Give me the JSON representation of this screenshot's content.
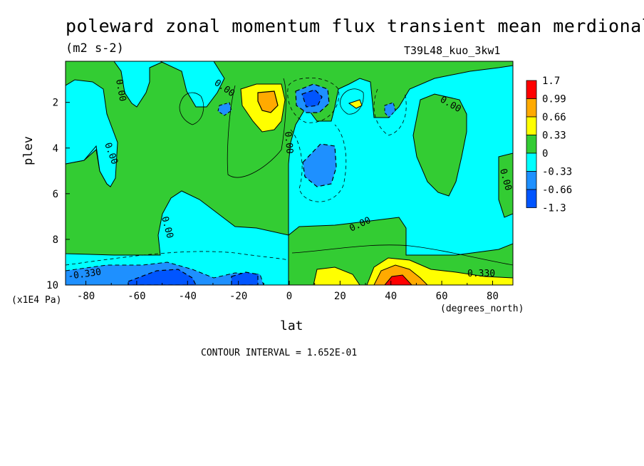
{
  "chart_data": {
    "type": "heatmap",
    "title": "poleward zonal momentum flux transient mean merdional",
    "units": "(m2 s-2)",
    "run_label": "T39L48_kuo_3kw1",
    "xlabel": "lat",
    "ylabel": "plev",
    "x_coord_label": "(degrees_north)",
    "y_coord_label": "(x1E4 Pa)",
    "xlim": [
      -88,
      88
    ],
    "ylim": [
      10,
      0.2
    ],
    "x_ticks": [
      "-80",
      "-60",
      "-40",
      "-20",
      "0",
      "20",
      "40",
      "60",
      "80"
    ],
    "x_tick_values": [
      -80,
      -60,
      -40,
      -20,
      0,
      20,
      40,
      60,
      80
    ],
    "y_ticks": [
      "2",
      "4",
      "6",
      "8",
      "10"
    ],
    "y_tick_values": [
      2,
      4,
      6,
      8,
      10
    ],
    "contour_interval_text": "CONTOUR INTERVAL = 1.652E-01",
    "contour_labels": [
      "0.00",
      "0.00",
      "0.00",
      "0.00",
      "0.00",
      "0.00",
      "0.00",
      "-0.330",
      "0.330"
    ],
    "colorbar": {
      "labels": [
        "1.7",
        "0.99",
        "0.66",
        "0.33",
        "0",
        "-0.33",
        "-0.66",
        "-1.3"
      ],
      "colors": [
        "#ff0000",
        "#ffaa00",
        "#ffff00",
        "#33cc33",
        "#00ffff",
        "#1e90ff",
        "#0055ff"
      ]
    },
    "background_color": "#00ffff",
    "regions": [
      {
        "name": "positive-sh-midlat",
        "class": "0 to 0.33",
        "color": "#33cc33"
      },
      {
        "name": "positive-upper",
        "class": "0 to 0.33",
        "color": "#33cc33"
      },
      {
        "name": "positive-nh-lower",
        "class": "0 to 0.33",
        "color": "#33cc33"
      },
      {
        "name": "max-upper-near-minus8",
        "class": "0.66 to 0.99",
        "color": "#ffaa00"
      },
      {
        "name": "max-lower-near-45N",
        "class": "> 0.99",
        "color": "#ff0000"
      },
      {
        "name": "min-upper-near-8N",
        "class": "-0.66 to -1.3",
        "color": "#0055ff"
      },
      {
        "name": "min-mid-near-12N",
        "class": "-0.33 to -0.66",
        "color": "#1e90ff"
      },
      {
        "name": "min-lower-near-40S",
        "class": "-0.66 to -1.3",
        "color": "#0055ff"
      }
    ]
  }
}
